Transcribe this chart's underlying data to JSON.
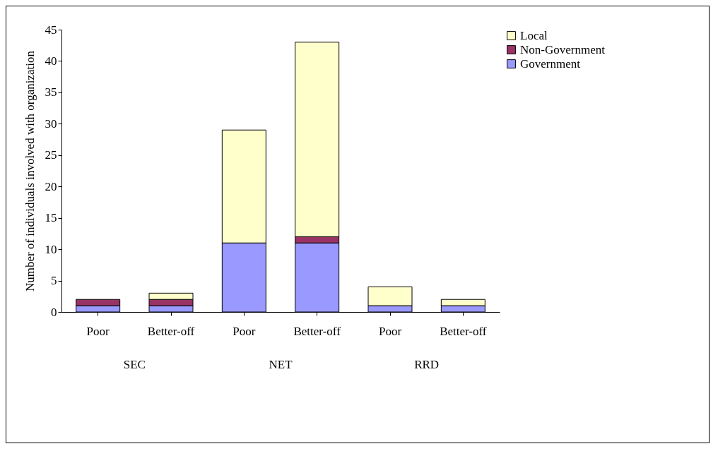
{
  "chart_data": {
    "type": "bar",
    "stacked": true,
    "ylabel": "Number of individuals involved with organization",
    "categories": [
      "Poor",
      "Better-off",
      "Poor",
      "Better-off",
      "Poor",
      "Better-off"
    ],
    "series": [
      {
        "name": "Government",
        "color": "#9999ff",
        "values": [
          1,
          1,
          11,
          11,
          1,
          1
        ]
      },
      {
        "name": "Non-Government",
        "color": "#993366",
        "values": [
          1,
          1,
          0,
          1,
          0,
          0
        ]
      },
      {
        "name": "Local",
        "color": "#ffffcc",
        "values": [
          0,
          1,
          18,
          31,
          3,
          1
        ]
      }
    ],
    "annotations": [
      "SEC",
      "NET",
      "RRD"
    ],
    "ylim": [
      0,
      45
    ],
    "yticks": [
      0,
      5,
      10,
      15,
      20,
      25,
      30,
      35,
      40,
      45
    ],
    "grid": false,
    "legend": "right"
  }
}
